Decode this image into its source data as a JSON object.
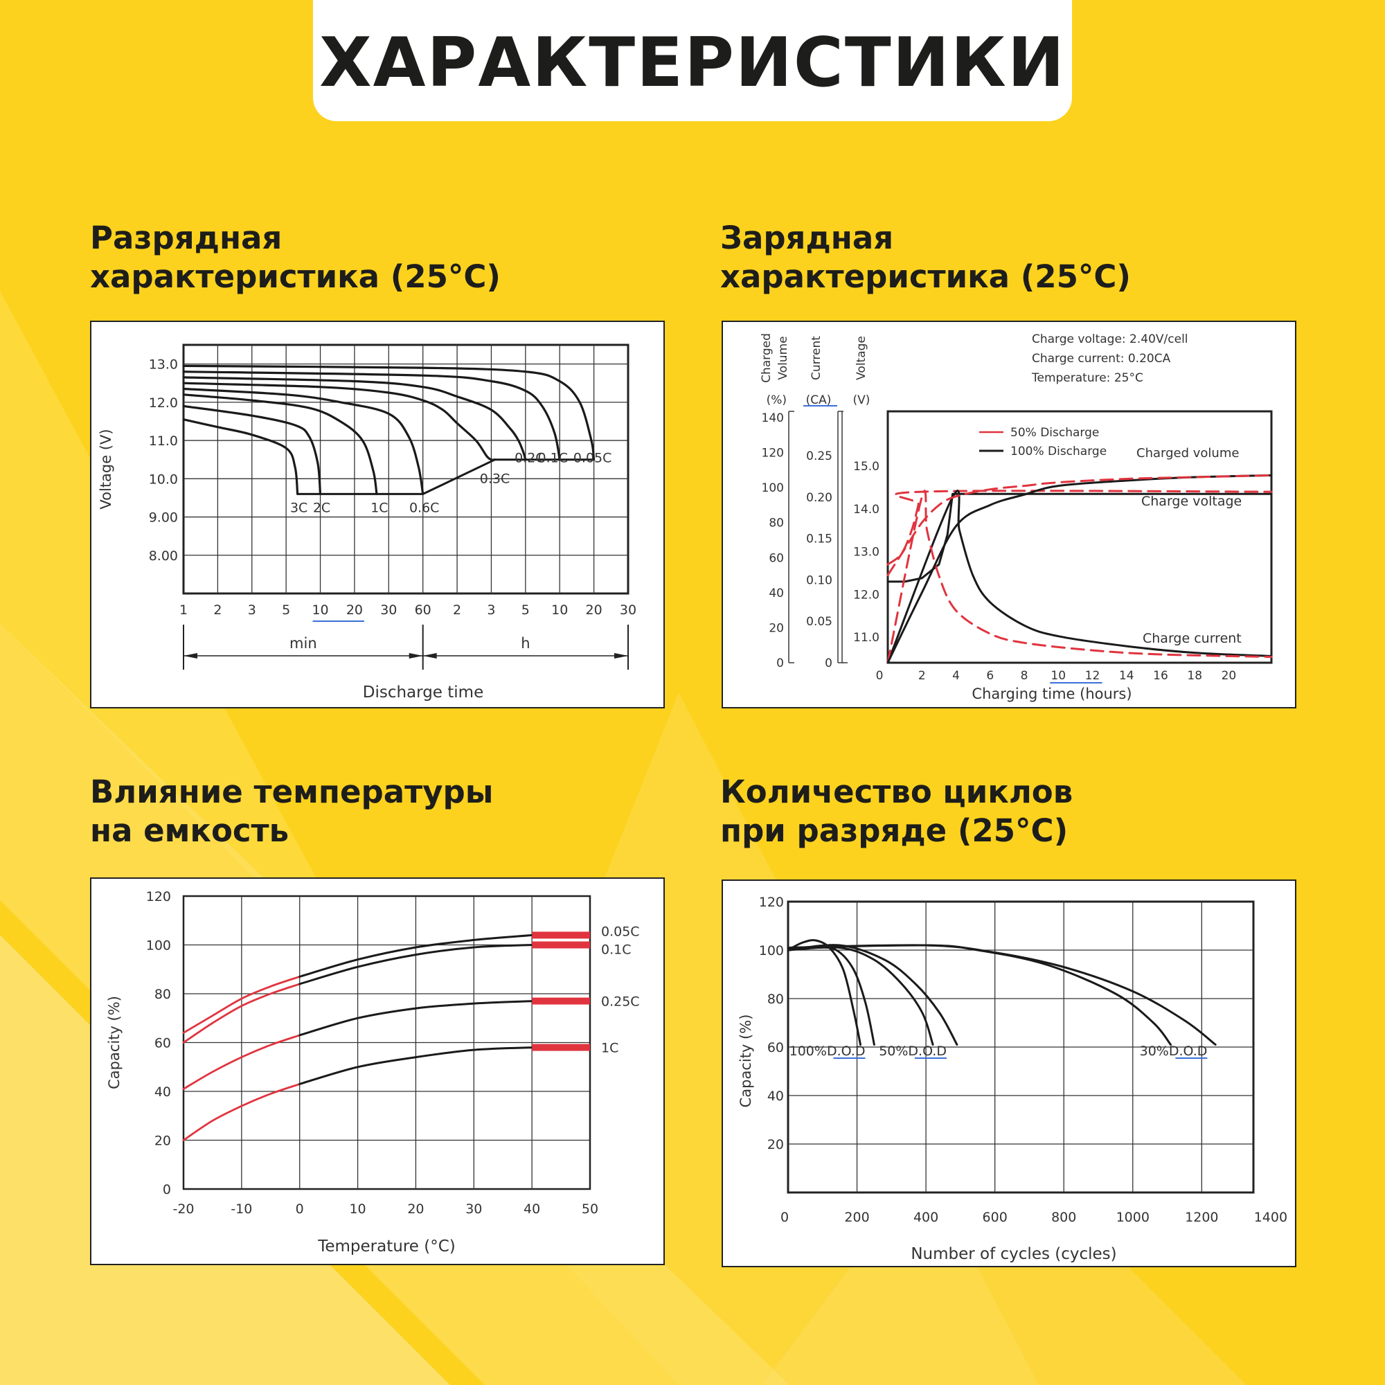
{
  "header": {
    "title": "ХАРАКТЕРИСТИКИ"
  },
  "sections": [
    {
      "title_line1": "Разрядная",
      "title_line2": "характеристика (25°C)"
    },
    {
      "title_line1": "Зарядная",
      "title_line2": "характеристика (25°C)"
    },
    {
      "title_line1": "Влияние температуры",
      "title_line2": "на емкость"
    },
    {
      "title_line1": "Количество циклов",
      "title_line2": "при разряде (25°C)"
    }
  ],
  "colors": {
    "background": "#fcd21e",
    "header_box": "#ffffff",
    "text": "#1d1d1b",
    "curve": "#1a1a1a",
    "red": "#e0343f",
    "link_blue": "#3a6fd8"
  },
  "chart_data": [
    {
      "type": "line",
      "ylabel": "Voltage (V)",
      "xlabel": "Discharge time",
      "y_ticks": [
        "13.0",
        "12.0",
        "11.0",
        "10.0",
        "9.00",
        "8.00"
      ],
      "ylim": [
        7.0,
        13.5
      ],
      "x_tick_labels": [
        "1",
        "2",
        "3",
        "5",
        "10",
        "20",
        "30",
        "60",
        "2",
        "3",
        "5",
        "10",
        "20",
        "30"
      ],
      "x_units": {
        "min": "min",
        "h": "h"
      },
      "grid": true,
      "series": [
        {
          "name": "3C",
          "x_min": [
            1,
            2,
            3,
            5,
            6,
            6.3
          ],
          "y": [
            11.55,
            11.35,
            11.15,
            10.8,
            10.3,
            9.6
          ]
        },
        {
          "name": "2C",
          "x_min": [
            1,
            3,
            6,
            8,
            9.5,
            10
          ],
          "y": [
            11.9,
            11.65,
            11.4,
            11.1,
            10.4,
            9.6
          ]
        },
        {
          "name": "1C",
          "x_min": [
            1,
            3,
            8,
            15,
            22,
            25,
            26
          ],
          "y": [
            12.2,
            12.05,
            11.85,
            11.5,
            11.0,
            10.2,
            9.6
          ]
        },
        {
          "name": "0.6C",
          "x_min": [
            1,
            5,
            15,
            30,
            45,
            55,
            60
          ],
          "y": [
            12.35,
            12.2,
            12.0,
            11.7,
            11.1,
            10.3,
            9.6
          ]
        },
        {
          "name": "0.3C",
          "x_min": [
            1,
            10,
            30,
            60,
            90,
            120,
            150,
            170,
            180,
            190
          ],
          "y": [
            12.5,
            12.4,
            12.25,
            12.05,
            11.8,
            11.45,
            11.0,
            10.6,
            10.5,
            10.5
          ]
        },
        {
          "name": "0.2C",
          "x_min": [
            1,
            20,
            60,
            120,
            180,
            240,
            270,
            290,
            300
          ],
          "y": [
            12.65,
            12.55,
            12.4,
            12.15,
            11.8,
            11.3,
            11.0,
            10.7,
            10.5
          ]
        },
        {
          "name": "0.1C",
          "x_min": [
            1,
            60,
            180,
            300,
            420,
            540,
            600
          ],
          "y": [
            12.8,
            12.7,
            12.55,
            12.3,
            11.9,
            11.2,
            10.5
          ]
        },
        {
          "name": "0.05C",
          "x_min": [
            1,
            60,
            300,
            600,
            900,
            1140,
            1200
          ],
          "y": [
            12.95,
            12.9,
            12.8,
            12.55,
            12.0,
            11.0,
            10.5
          ]
        }
      ]
    },
    {
      "type": "line",
      "xlabel": "Charging time (hours)",
      "x_ticks": [
        "0",
        "2",
        "4",
        "6",
        "8",
        "10",
        "12",
        "14",
        "16",
        "18",
        "20"
      ],
      "xlim": [
        0,
        22.5
      ],
      "axis1": {
        "label_lines": [
          "Charged",
          "Volume"
        ],
        "unit": "(%)",
        "ticks": [
          "140",
          "120",
          "100",
          "80",
          "60",
          "40",
          "20",
          "0"
        ]
      },
      "axis2": {
        "label_lines": [
          "Current"
        ],
        "unit": "(CA)",
        "ticks": [
          "0.25",
          "0.20",
          "0.15",
          "0.10",
          "0.05",
          "0"
        ]
      },
      "axis3": {
        "label_lines": [
          "Voltage"
        ],
        "unit": "(V)",
        "ticks": [
          "15.0",
          "14.0",
          "13.0",
          "12.0",
          "11.0"
        ]
      },
      "notes": [
        "Charge voltage: 2.40V/cell",
        "Charge current: 0.20CA",
        "Temperature: 25°C"
      ],
      "legend": [
        {
          "label": "50% Discharge",
          "color": "#e0343f",
          "style": "dashed"
        },
        {
          "label": "100% Discharge",
          "color": "#1a1a1a",
          "style": "solid"
        }
      ],
      "curve_labels": [
        "Charged volume",
        "Charge voltage",
        "Charge current"
      ],
      "series": [
        {
          "name": "100% Discharge voltage (V)",
          "x": [
            0,
            1,
            2,
            3,
            3.5,
            3.8,
            22.5
          ],
          "y": [
            12.3,
            12.3,
            12.38,
            12.7,
            13.4,
            14.35,
            14.35
          ]
        },
        {
          "name": "50% Discharge voltage (V)",
          "x": [
            0,
            0.8,
            1.4,
            1.8,
            2.0,
            22.5
          ],
          "y": [
            12.7,
            12.95,
            13.5,
            14.1,
            14.4,
            14.4
          ]
        },
        {
          "name": "100% Discharge current (CA)",
          "x": [
            0,
            3.8,
            4.2,
            5,
            6,
            8,
            10,
            14,
            18,
            22.5
          ],
          "y": [
            0,
            0.2,
            0.16,
            0.105,
            0.073,
            0.045,
            0.032,
            0.02,
            0.012,
            0.008
          ]
        },
        {
          "name": "50% Discharge current (CA)",
          "x": [
            0,
            2.0,
            2.3,
            3,
            4,
            6,
            8,
            12,
            16,
            22.5
          ],
          "y": [
            0,
            0.2,
            0.16,
            0.105,
            0.063,
            0.035,
            0.024,
            0.015,
            0.01,
            0.007
          ]
        },
        {
          "name": "100% Discharge charged volume (%)",
          "x": [
            0,
            2,
            4,
            6,
            8,
            10,
            14,
            18,
            22.5
          ],
          "y": [
            0,
            40,
            78,
            90,
            96,
            101,
            104,
            106,
            107
          ]
        },
        {
          "name": "50% Discharge charged volume (%)",
          "x": [
            0,
            1,
            2,
            3,
            4,
            6,
            8,
            10,
            14,
            18,
            22.5
          ],
          "y": [
            50,
            65,
            80,
            90,
            95,
            99,
            101,
            103,
            105,
            106,
            107
          ]
        }
      ]
    },
    {
      "type": "line",
      "xlabel": "Temperature (°C)",
      "ylabel": "Capacity (%)",
      "x_ticks": [
        "-20",
        "-10",
        "0",
        "10",
        "20",
        "30",
        "40",
        "50"
      ],
      "y_ticks": [
        "120",
        "100",
        "80",
        "60",
        "40",
        "20",
        "0"
      ],
      "xlim": [
        -20,
        50
      ],
      "ylim": [
        0,
        120
      ],
      "grid": true,
      "series": [
        {
          "name": "0.05C",
          "x": [
            -20,
            -15,
            -10,
            -5,
            0,
            10,
            20,
            30,
            40,
            50
          ],
          "y": [
            64,
            71,
            78,
            83,
            87,
            94,
            99,
            102,
            104,
            104
          ]
        },
        {
          "name": "0.1C",
          "x": [
            -20,
            -15,
            -10,
            -5,
            0,
            10,
            20,
            30,
            40,
            50
          ],
          "y": [
            60,
            68,
            75,
            80,
            84,
            91,
            96,
            99,
            100,
            100
          ]
        },
        {
          "name": "0.25C",
          "x": [
            -20,
            -15,
            -10,
            -5,
            0,
            10,
            20,
            30,
            40,
            50
          ],
          "y": [
            41,
            48,
            54,
            59,
            63,
            70,
            74,
            76,
            77,
            77
          ]
        },
        {
          "name": "1C",
          "x": [
            -20,
            -15,
            -10,
            -5,
            0,
            10,
            20,
            30,
            40,
            50
          ],
          "y": [
            20,
            28,
            34,
            39,
            43,
            50,
            54,
            57,
            58,
            58
          ]
        }
      ]
    },
    {
      "type": "line",
      "xlabel": "Number of cycles (cycles)",
      "ylabel": "Capacity (%)",
      "x_ticks": [
        "0",
        "200",
        "400",
        "600",
        "800",
        "1000",
        "1200",
        "1400"
      ],
      "y_ticks": [
        "120",
        "100",
        "80",
        "60",
        "40",
        "20"
      ],
      "xlim": [
        0,
        1350
      ],
      "ylim": [
        0,
        120
      ],
      "grid": true,
      "dod_labels": [
        {
          "prefix": "100%D.",
          "suffix": "O.D"
        },
        {
          "prefix": "50%D.",
          "suffix": "O.D"
        },
        {
          "prefix": "30%D.",
          "suffix": "O.D"
        }
      ],
      "series": [
        {
          "name": "100%D.O.D (a)",
          "x": [
            0,
            40,
            80,
            120,
            160,
            190,
            210
          ],
          "y": [
            100,
            103,
            104,
            101,
            92,
            75,
            61
          ]
        },
        {
          "name": "100%D.O.D (b)",
          "x": [
            0,
            80,
            140,
            190,
            225,
            250
          ],
          "y": [
            100,
            101,
            100,
            92,
            78,
            61
          ]
        },
        {
          "name": "50%D.O.D (a)",
          "x": [
            0,
            150,
            250,
            330,
            390,
            420
          ],
          "y": [
            100,
            101,
            96,
            86,
            74,
            61
          ]
        },
        {
          "name": "50%D.O.D (b)",
          "x": [
            0,
            150,
            280,
            370,
            440,
            490
          ],
          "y": [
            100,
            102,
            96,
            86,
            74,
            61
          ]
        },
        {
          "name": "30%D.O.D (a)",
          "x": [
            0,
            400,
            550,
            750,
            950,
            1060,
            1110
          ],
          "y": [
            101,
            102,
            100,
            94,
            82,
            70,
            61
          ]
        },
        {
          "name": "30%D.O.D (b)",
          "x": [
            0,
            400,
            600,
            800,
            1000,
            1150,
            1240
          ],
          "y": [
            101,
            102,
            99,
            93,
            83,
            71,
            61
          ]
        }
      ]
    }
  ]
}
